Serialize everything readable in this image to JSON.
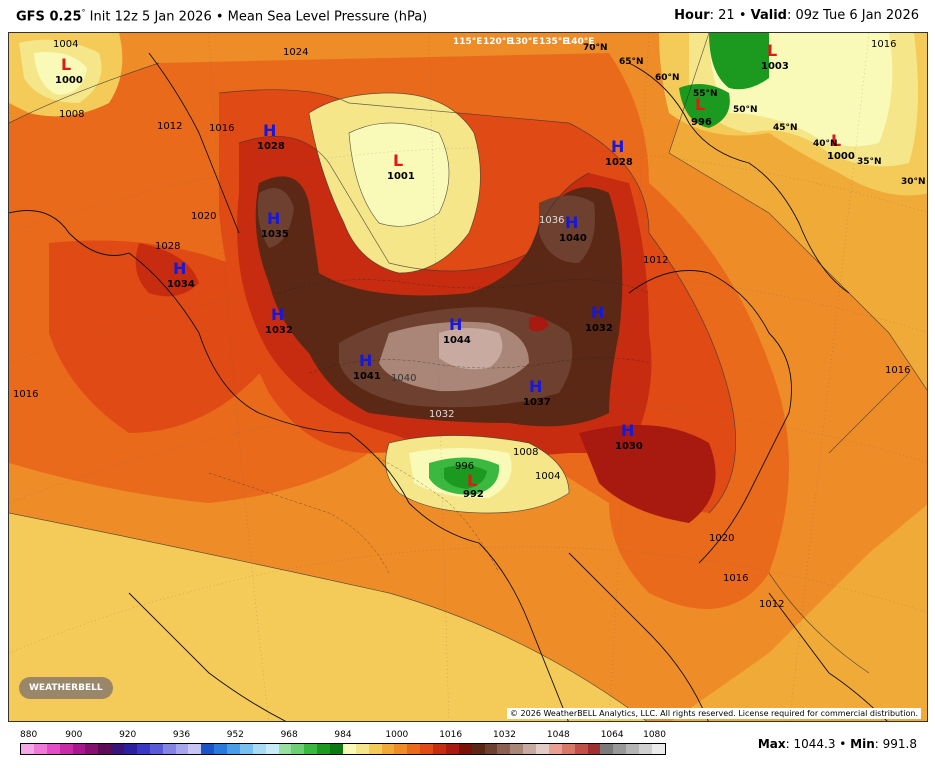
{
  "header": {
    "model": "GFS 0.25",
    "degree": "°",
    "init": " Init 12z 5 Jan 2026 • Mean Sea Level Pressure (hPa)",
    "hour_label": "Hour",
    "hour_value": ": 21 • ",
    "valid_label": "Valid",
    "valid_value": ": 09z Tue 6 Jan 2026"
  },
  "centers": {
    "highs": [
      {
        "label": "H",
        "value": "1028"
      },
      {
        "label": "H",
        "value": "1035"
      },
      {
        "label": "H",
        "value": "1034"
      },
      {
        "label": "H",
        "value": "1032"
      },
      {
        "label": "H",
        "value": "1041"
      },
      {
        "label": "H",
        "value": "1044"
      },
      {
        "label": "H",
        "value": "1037"
      },
      {
        "label": "H",
        "value": "1040"
      },
      {
        "label": "H",
        "value": "1028"
      },
      {
        "label": "H",
        "value": "1032"
      },
      {
        "label": "H",
        "value": "1030"
      }
    ],
    "lows": [
      {
        "label": "L",
        "value": "1000"
      },
      {
        "label": "L",
        "value": "1001"
      },
      {
        "label": "L",
        "value": "992"
      },
      {
        "label": "L",
        "value": "996"
      },
      {
        "label": "L",
        "value": "1003"
      },
      {
        "label": "L",
        "value": "1000"
      }
    ]
  },
  "contour_labels": [
    "1004",
    "1008",
    "1012",
    "1016",
    "1020",
    "1024",
    "1028",
    "1036",
    "1040",
    "1032",
    "996",
    "1008",
    "1004",
    "1012",
    "1016",
    "1020",
    "1016",
    "1012",
    "1016",
    "1016"
  ],
  "lat_labels": [
    "70°N",
    "65°N",
    "60°N",
    "55°N",
    "50°N",
    "45°N",
    "40°N",
    "35°N",
    "30°N"
  ],
  "lon_labels": [
    "115°E",
    "120°E",
    "130°E",
    "135°E",
    "140°E"
  ],
  "credit": "© 2026 WeatherBELL Analytics, LLC. All rights reserved. License required for commercial distribution.",
  "logo": "WEATHERBELL",
  "legend": {
    "ticks": [
      "880",
      "900",
      "920",
      "936",
      "952",
      "968",
      "984",
      "1000",
      "1016",
      "1032",
      "1048",
      "1064",
      "1080"
    ],
    "colors": [
      "#f5a8e8",
      "#f07ad8",
      "#e44cc8",
      "#c82aa8",
      "#a8188c",
      "#861070",
      "#5c0c58",
      "#3a1478",
      "#2c20a0",
      "#3838c4",
      "#5a5ad8",
      "#8484e4",
      "#a6a6ee",
      "#c6c6f4",
      "#1c54c8",
      "#2a7ade",
      "#4a9ee8",
      "#78c0f0",
      "#a8dcf4",
      "#c8ecf6",
      "#98e0a0",
      "#6cd070",
      "#3ab840",
      "#1c9a20",
      "#0c7a10",
      "#fafab8",
      "#f6e68a",
      "#f4ca58",
      "#f0aa38",
      "#ee8c28",
      "#ea6a1c",
      "#e04a14",
      "#c82c10",
      "#a81a10",
      "#7a1208",
      "#5a2814",
      "#6e4030",
      "#8c6050",
      "#aa8678",
      "#c8aaa0",
      "#e4ccc6",
      "#e8a090",
      "#d87868",
      "#c05048",
      "#a03030",
      "#7a7a7a",
      "#989898",
      "#b4b4b4",
      "#d0d0d0",
      "#ececec"
    ],
    "max_label": "Max",
    "max_value": ": 1044.3 • ",
    "min_label": "Min",
    "min_value": ": 991.8"
  }
}
